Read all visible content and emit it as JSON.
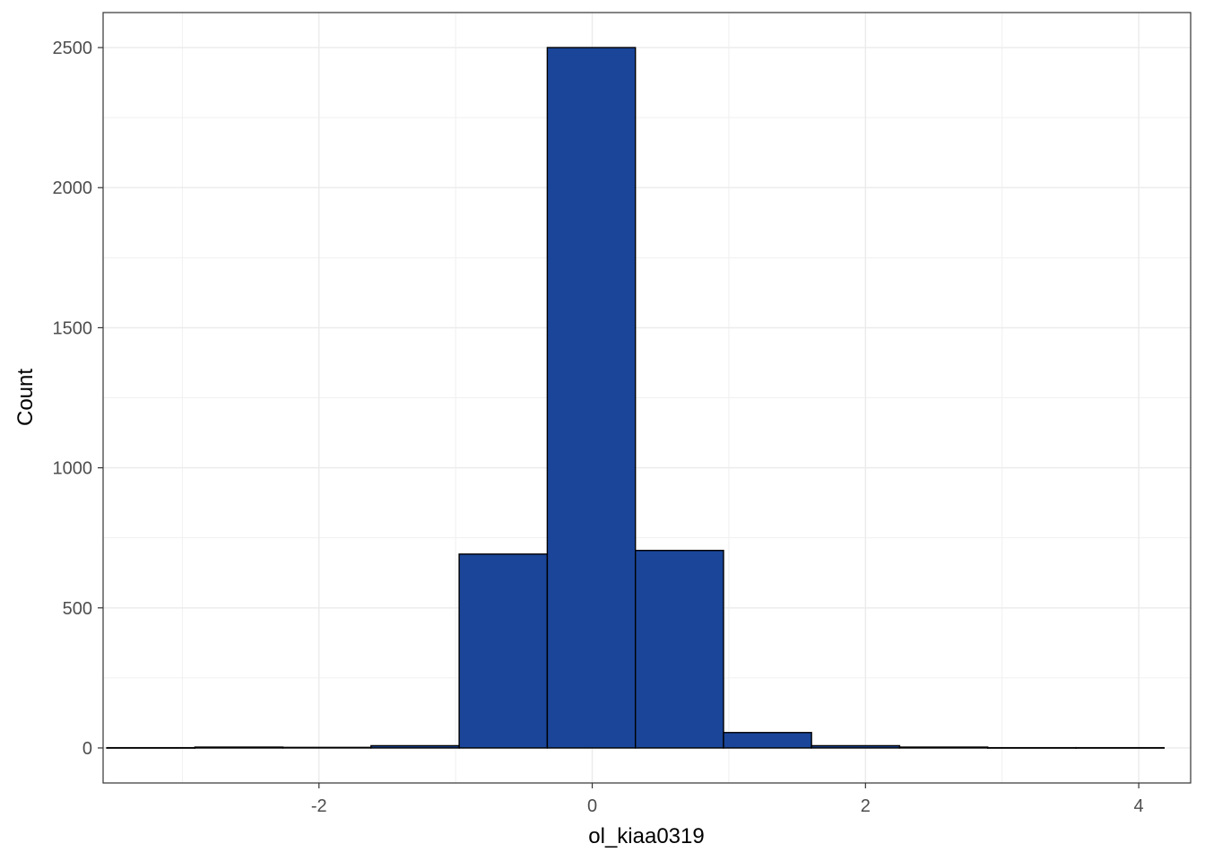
{
  "chart_data": {
    "type": "bar",
    "subtype": "histogram",
    "xlabel": "ol_kiaa0319",
    "ylabel": "Count",
    "xlim": [
      -3.58,
      4.38
    ],
    "ylim": [
      -125,
      2625
    ],
    "x_ticks": [
      -2,
      0,
      2,
      4
    ],
    "x_tick_labels": [
      "-2",
      "0",
      "2",
      "4"
    ],
    "y_ticks": [
      0,
      500,
      1000,
      1500,
      2000,
      2500
    ],
    "y_tick_labels": [
      "0",
      "500",
      "1000",
      "1500",
      "2000",
      "2500"
    ],
    "grid": true,
    "bin_edges": [
      -3.553,
      -2.908,
      -2.264,
      -1.619,
      -0.974,
      -0.329,
      0.316,
      0.961,
      1.605,
      2.25,
      2.895,
      3.54,
      4.185
    ],
    "counts": [
      1,
      3,
      2,
      8,
      692,
      2500,
      705,
      55,
      8,
      3,
      1,
      1
    ],
    "bar_fill": "#1a4599",
    "bar_stroke": "#000000"
  }
}
